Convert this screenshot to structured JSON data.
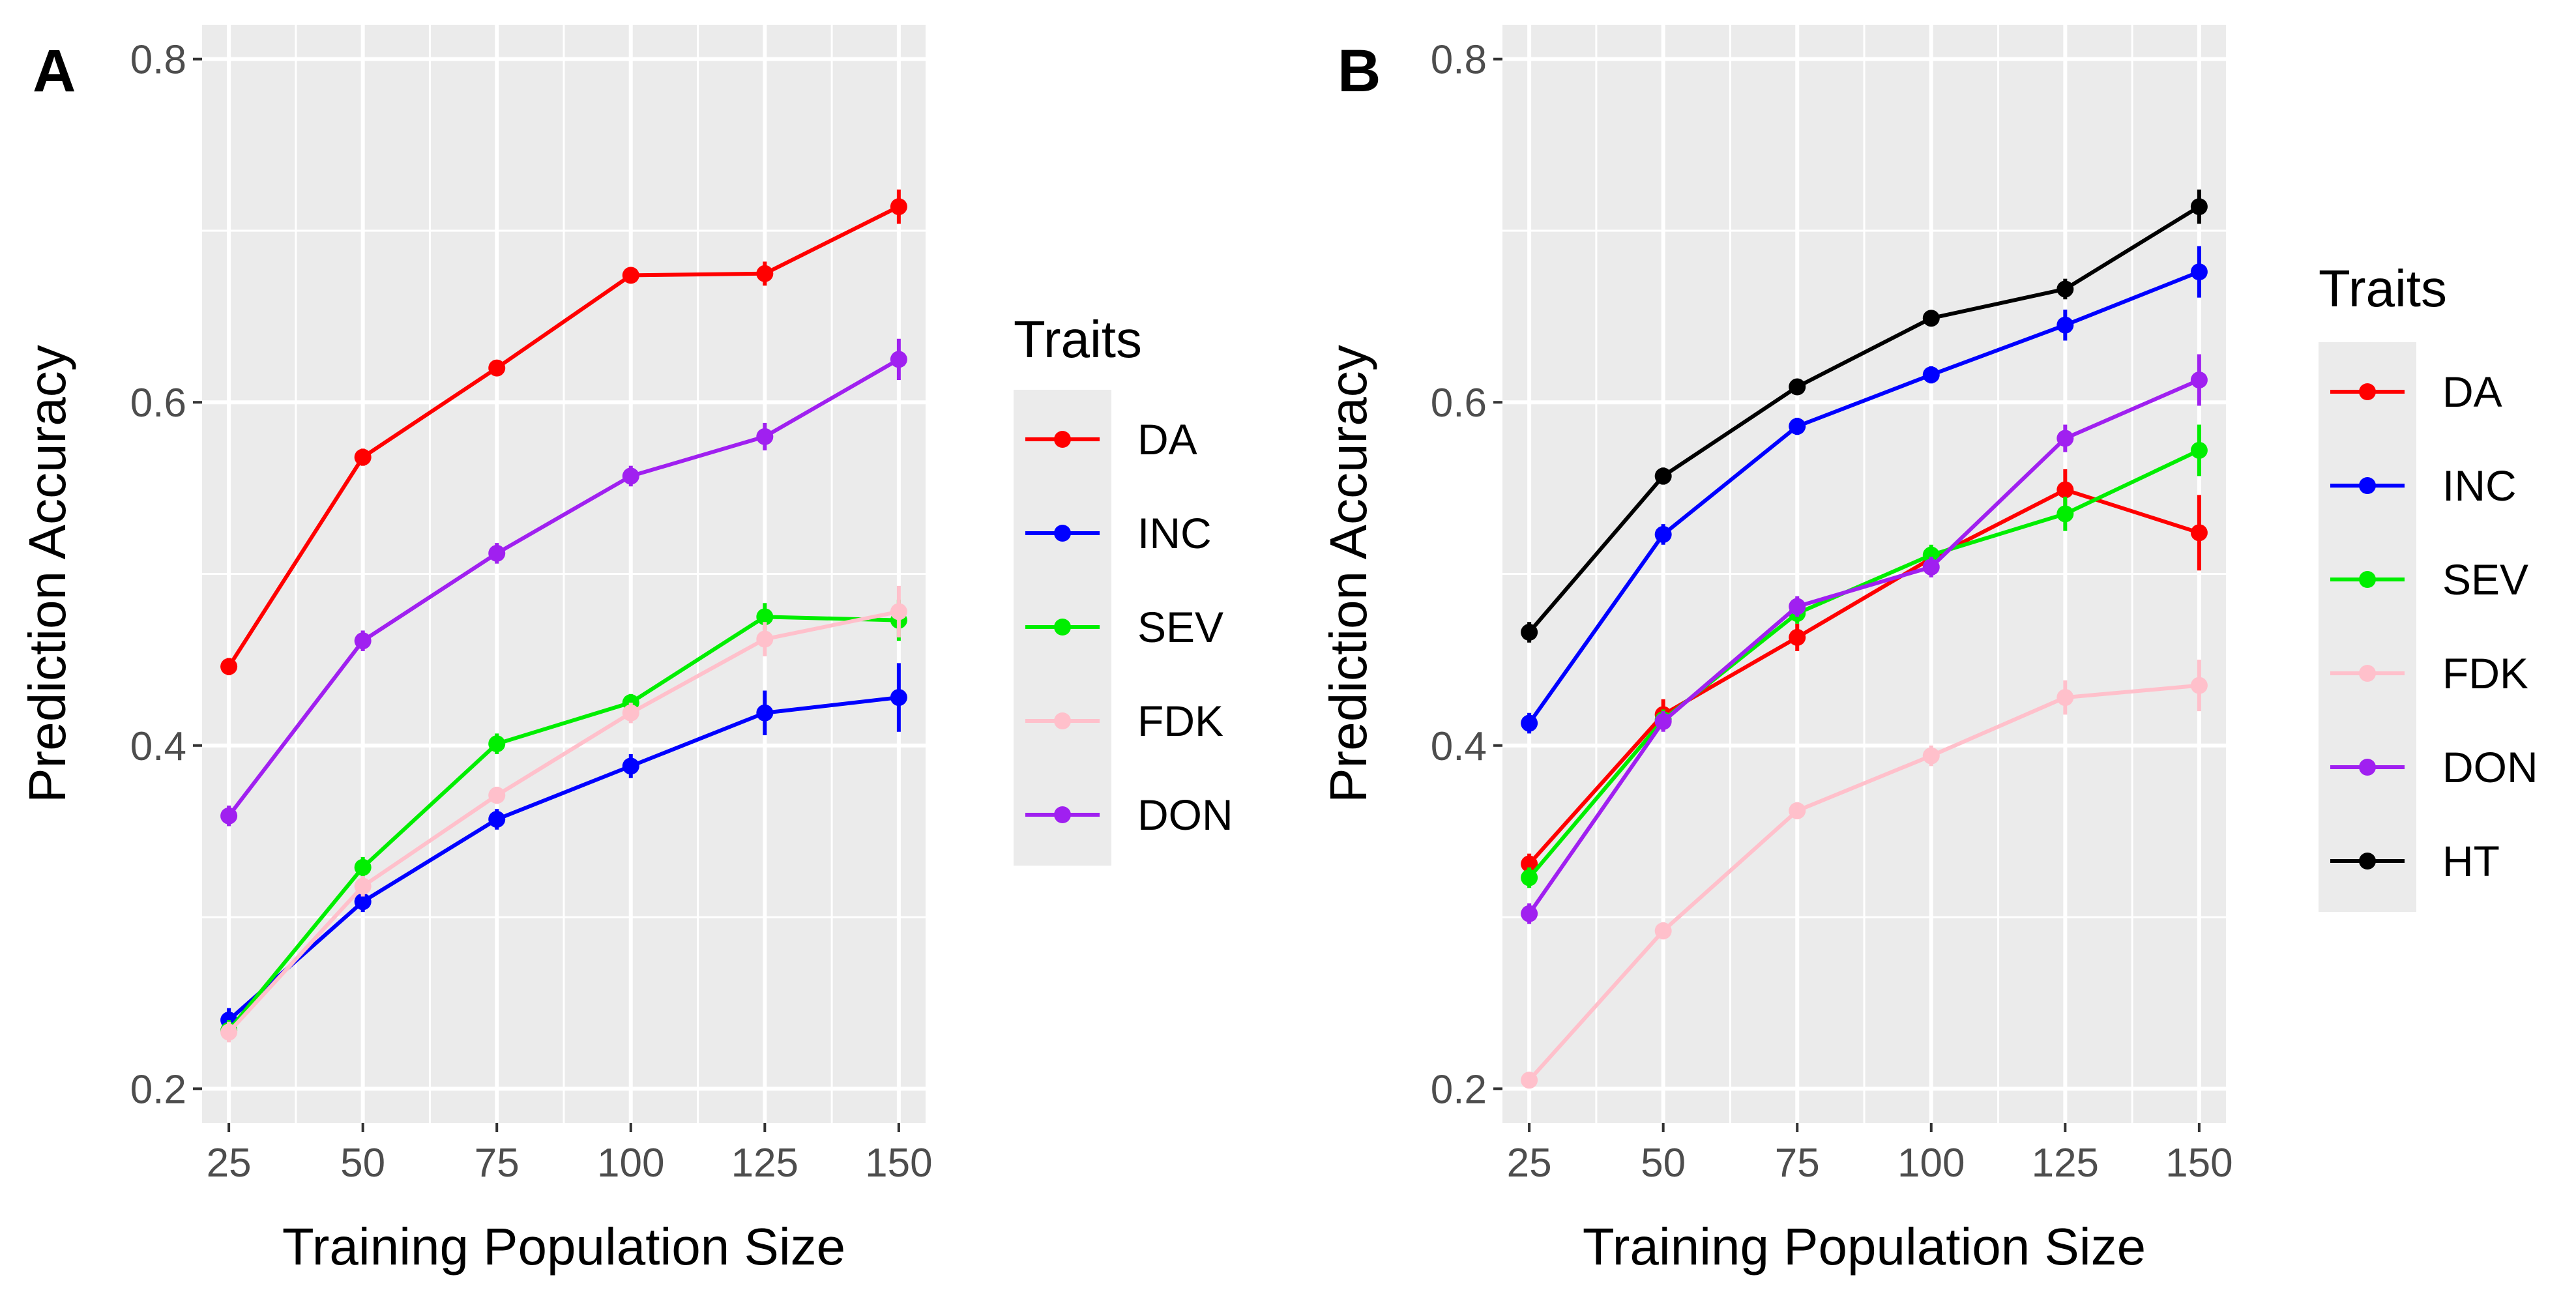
{
  "chart_data": [
    {
      "type": "line",
      "panel_label": "A",
      "xlabel": "Training Population Size",
      "ylabel": "Prediction Accuracy",
      "x": [
        25,
        50,
        75,
        100,
        125,
        150
      ],
      "xticks": [
        "25",
        "50",
        "75",
        "100",
        "125",
        "150"
      ],
      "yticks": [
        "0.2",
        "0.4",
        "0.6",
        "0.8"
      ],
      "xlim": [
        20,
        155
      ],
      "ylim": [
        0.18,
        0.82
      ],
      "grid": true,
      "legend_title": "Traits",
      "legend_position": "right",
      "series": [
        {
          "name": "DA",
          "color": "#ff0000",
          "values": [
            0.446,
            0.568,
            0.62,
            0.674,
            0.675,
            0.714
          ],
          "errors": [
            0.005,
            0.005,
            0.004,
            0.004,
            0.007,
            0.01
          ]
        },
        {
          "name": "INC",
          "color": "#0000ff",
          "values": [
            0.24,
            0.309,
            0.357,
            0.388,
            0.419,
            0.428
          ],
          "errors": [
            0.007,
            0.006,
            0.006,
            0.007,
            0.013,
            0.02
          ]
        },
        {
          "name": "SEV",
          "color": "#00ee00",
          "values": [
            0.234,
            0.329,
            0.401,
            0.425,
            0.475,
            0.473
          ],
          "errors": [
            0.006,
            0.006,
            0.006,
            0.005,
            0.008,
            0.012
          ]
        },
        {
          "name": "FDK",
          "color": "#ffc0cb",
          "values": [
            0.233,
            0.318,
            0.371,
            0.419,
            0.462,
            0.478
          ],
          "errors": [
            0.006,
            0.006,
            0.005,
            0.006,
            0.01,
            0.015
          ]
        },
        {
          "name": "DON",
          "color": "#a020f0",
          "values": [
            0.359,
            0.461,
            0.512,
            0.557,
            0.58,
            0.625
          ],
          "errors": [
            0.006,
            0.006,
            0.006,
            0.006,
            0.008,
            0.012
          ]
        }
      ]
    },
    {
      "type": "line",
      "panel_label": "B",
      "xlabel": "Training Population Size",
      "ylabel": "Prediction Accuracy",
      "x": [
        25,
        50,
        75,
        100,
        125,
        150
      ],
      "xticks": [
        "25",
        "50",
        "75",
        "100",
        "125",
        "150"
      ],
      "yticks": [
        "0.2",
        "0.4",
        "0.6",
        "0.8"
      ],
      "xlim": [
        20,
        155
      ],
      "ylim": [
        0.18,
        0.82
      ],
      "grid": true,
      "legend_title": "Traits",
      "legend_position": "right",
      "series": [
        {
          "name": "DA",
          "color": "#ff0000",
          "values": [
            0.331,
            0.418,
            0.463,
            0.509,
            0.549,
            0.524
          ],
          "errors": [
            0.006,
            0.009,
            0.008,
            0.006,
            0.012,
            0.022
          ]
        },
        {
          "name": "INC",
          "color": "#0000ff",
          "values": [
            0.413,
            0.523,
            0.586,
            0.616,
            0.645,
            0.676
          ],
          "errors": [
            0.006,
            0.006,
            0.005,
            0.005,
            0.009,
            0.015
          ]
        },
        {
          "name": "SEV",
          "color": "#00ee00",
          "values": [
            0.323,
            0.415,
            0.477,
            0.511,
            0.535,
            0.572
          ],
          "errors": [
            0.006,
            0.006,
            0.006,
            0.006,
            0.01,
            0.015
          ]
        },
        {
          "name": "FDK",
          "color": "#ffc0cb",
          "values": [
            0.205,
            0.292,
            0.362,
            0.394,
            0.428,
            0.435
          ],
          "errors": [
            0.004,
            0.005,
            0.005,
            0.006,
            0.01,
            0.015
          ]
        },
        {
          "name": "DON",
          "color": "#a020f0",
          "values": [
            0.302,
            0.414,
            0.481,
            0.504,
            0.579,
            0.613
          ],
          "errors": [
            0.006,
            0.006,
            0.006,
            0.006,
            0.008,
            0.015
          ]
        },
        {
          "name": "HT",
          "color": "#000000",
          "values": [
            0.466,
            0.557,
            0.609,
            0.649,
            0.666,
            0.714
          ],
          "errors": [
            0.006,
            0.005,
            0.004,
            0.004,
            0.006,
            0.01
          ]
        }
      ]
    }
  ]
}
